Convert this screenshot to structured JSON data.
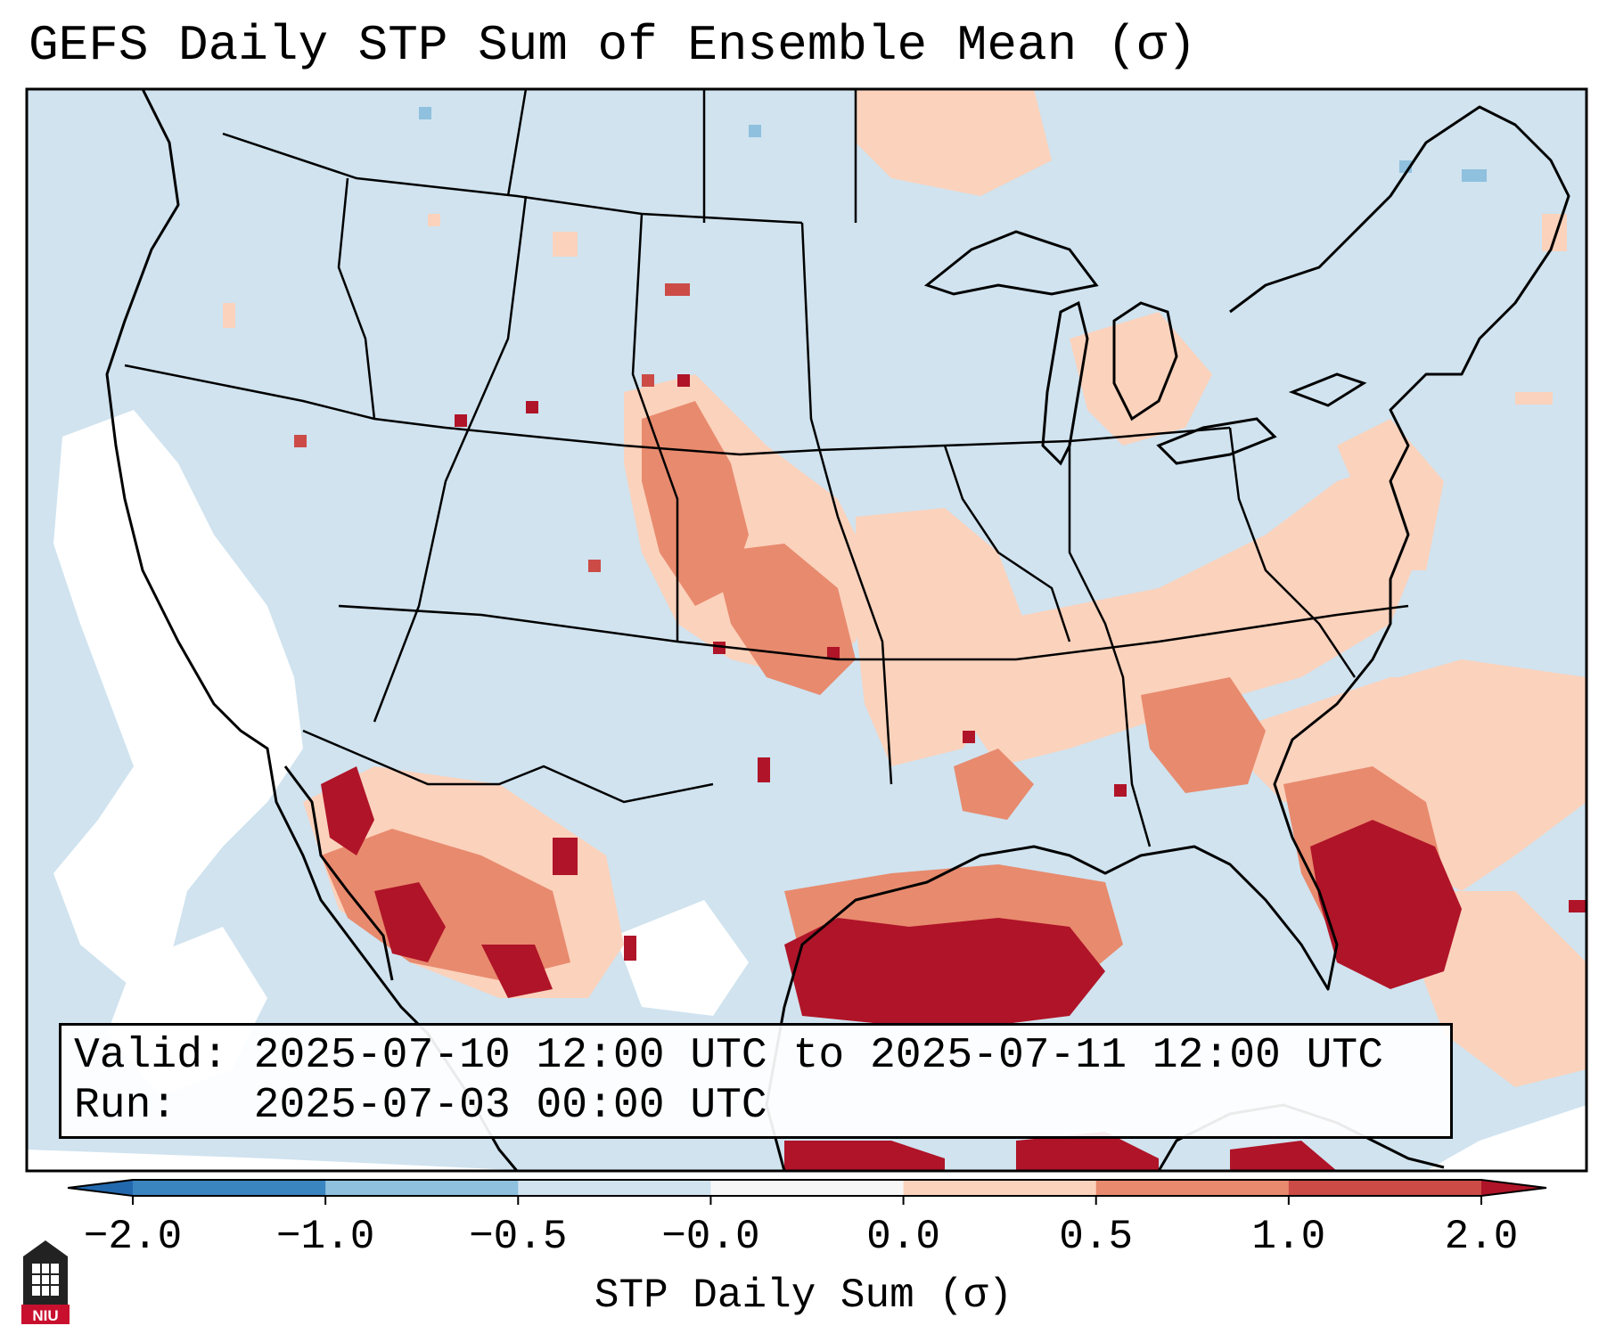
{
  "title": "GEFS Daily STP Sum of Ensemble Mean (σ)",
  "info": {
    "valid_line": "Valid: 2025-07-10 12:00 UTC to 2025-07-11 12:00 UTC",
    "run_line": "Run:   2025-07-03 00:00 UTC"
  },
  "colorbar": {
    "label": "STP Daily Sum (σ)",
    "ticks": [
      "−2.0",
      "−1.0",
      "−0.5",
      "−0.0",
      "0.0",
      "0.5",
      "1.0",
      "2.0"
    ],
    "bin_colors": [
      "#3a84c0",
      "#8fc0de",
      "#d0e3ef",
      "#f7f7f7",
      "#fbd2bc",
      "#e88a6e",
      "#cc4b47"
    ],
    "under_color": "#2268ad",
    "over_color": "#b01428"
  },
  "palette": {
    "ocean": "#d0e3ef",
    "no_data": "#ffffff",
    "weak_positive": "#fbd2bc",
    "moderate_positive": "#e88a6e",
    "strong_positive": "#cc4b47",
    "extreme_positive": "#b01428",
    "weak_negative": "#8fc0de"
  },
  "logo": {
    "text": "NIU",
    "color": "#c8102e"
  }
}
